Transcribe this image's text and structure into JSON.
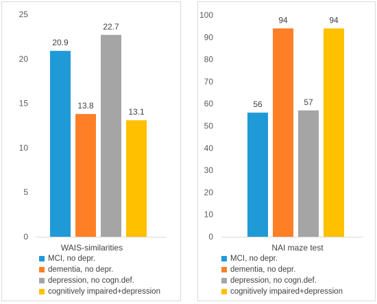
{
  "legend": [
    {
      "label": "MCI, no depr.",
      "color": "#1f9ad6"
    },
    {
      "label": "dementia, no depr.",
      "color": "#ff7f27"
    },
    {
      "label": "depression, no cogn.def.",
      "color": "#a5a5a5"
    },
    {
      "label": "cognitively impaired+depression",
      "color": "#ffc000"
    }
  ],
  "chart_data": [
    {
      "type": "bar",
      "xlabel": "WAIS-similarities",
      "categories": [
        "MCI, no depr.",
        "dementia, no depr.",
        "depression, no cogn.def.",
        "cognitively impaired+depression"
      ],
      "values": [
        20.9,
        13.8,
        22.7,
        13.1
      ],
      "value_labels": [
        "20.9",
        "13.8",
        "22.7",
        "13.1"
      ],
      "ylim": [
        0,
        25
      ],
      "yticks": [
        0,
        5,
        10,
        15,
        20,
        25
      ],
      "grid": false,
      "legend_position": "bottom"
    },
    {
      "type": "bar",
      "xlabel": "NAI maze test",
      "categories": [
        "MCI, no depr.",
        "dementia, no depr.",
        "depression, no cogn.def.",
        "cognitively impaired+depression"
      ],
      "values": [
        56,
        94,
        57,
        94
      ],
      "value_labels": [
        "56",
        "94",
        "57",
        "94"
      ],
      "ylim": [
        0,
        100
      ],
      "yticks": [
        0,
        10,
        20,
        30,
        40,
        50,
        60,
        70,
        80,
        90,
        100
      ],
      "grid": false,
      "legend_position": "bottom"
    }
  ]
}
